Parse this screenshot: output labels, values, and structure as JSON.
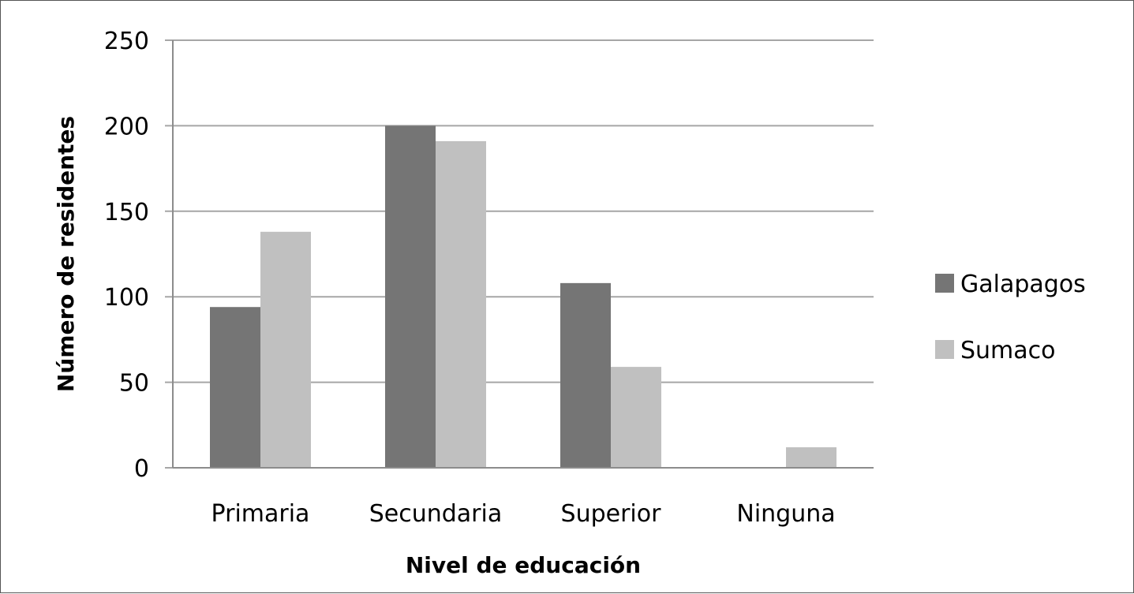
{
  "chart_data": {
    "type": "bar",
    "title": "",
    "xlabel": "Nivel de educación",
    "ylabel": "Número de residentes",
    "categories": [
      "Primaria",
      "Secundaria",
      "Superior",
      "Ninguna"
    ],
    "series": [
      {
        "name": "Galapagos",
        "color": "#757575",
        "values": [
          94,
          200,
          108,
          0
        ]
      },
      {
        "name": "Sumaco",
        "color": "#c0c0c0",
        "values": [
          138,
          191,
          59,
          12
        ]
      }
    ],
    "ylim": [
      0,
      250
    ],
    "yticks": [
      "0",
      "50",
      "100",
      "150",
      "200",
      "250"
    ],
    "grid": true,
    "legend_position": "right"
  }
}
